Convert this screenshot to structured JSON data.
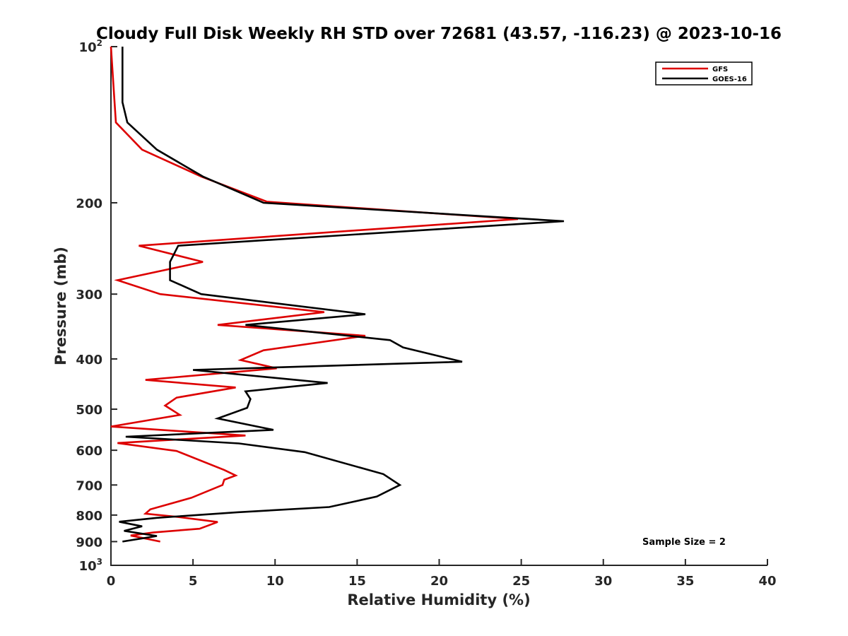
{
  "chart_data": {
    "type": "line",
    "title": "Cloudy Full Disk Weekly RH STD over 72681 (43.57, -116.23) @ 2023-10-16",
    "xlabel": "Relative Humidity (%)",
    "ylabel": "Pressure (mb)",
    "xlim": [
      0,
      40
    ],
    "ylim": [
      100,
      1000
    ],
    "y_scale": "log",
    "y_reversed": true,
    "x_ticks": [
      "0",
      "5",
      "10",
      "15",
      "20",
      "25",
      "30",
      "35",
      "40"
    ],
    "y_ticks": [
      {
        "value": 100,
        "base": "10",
        "exp": "2"
      },
      {
        "value": 200,
        "label": "200"
      },
      {
        "value": 300,
        "label": "300"
      },
      {
        "value": 400,
        "label": "400"
      },
      {
        "value": 500,
        "label": "500"
      },
      {
        "value": 600,
        "label": "600"
      },
      {
        "value": 700,
        "label": "700"
      },
      {
        "value": 800,
        "label": "800"
      },
      {
        "value": 900,
        "label": "900"
      },
      {
        "value": 1000,
        "base": "10",
        "exp": "3"
      }
    ],
    "grid": false,
    "legend_position": "top-right",
    "annotation": "Sample Size = 2",
    "series": [
      {
        "name": "GFS",
        "color": "#dd0000",
        "points": [
          [
            0.0,
            100
          ],
          [
            0.2,
            125
          ],
          [
            0.3,
            140
          ],
          [
            1.9,
            158
          ],
          [
            5.5,
            178
          ],
          [
            9.5,
            199
          ],
          [
            24.8,
            215
          ],
          [
            1.7,
            242
          ],
          [
            5.6,
            260
          ],
          [
            0.4,
            282
          ],
          [
            3.0,
            300
          ],
          [
            13.0,
            325
          ],
          [
            6.5,
            344
          ],
          [
            15.5,
            361
          ],
          [
            9.3,
            385
          ],
          [
            7.9,
            402
          ],
          [
            10.1,
            417
          ],
          [
            2.1,
            439
          ],
          [
            7.6,
            454
          ],
          [
            4.0,
            475
          ],
          [
            3.3,
            492
          ],
          [
            4.2,
            513
          ],
          [
            0.0,
            540
          ],
          [
            8.2,
            562
          ],
          [
            0.4,
            581
          ],
          [
            4.0,
            602
          ],
          [
            6.9,
            655
          ],
          [
            7.6,
            671
          ],
          [
            6.9,
            684
          ],
          [
            6.8,
            700
          ],
          [
            4.9,
            741
          ],
          [
            2.4,
            780
          ],
          [
            2.1,
            795
          ],
          [
            4.1,
            807
          ],
          [
            6.5,
            825
          ],
          [
            5.4,
            850
          ],
          [
            2.6,
            864
          ],
          [
            1.2,
            876
          ],
          [
            3.0,
            900
          ]
        ]
      },
      {
        "name": "GOES-16",
        "color": "#000000",
        "points": [
          [
            0.7,
            100
          ],
          [
            0.7,
            128
          ],
          [
            1.0,
            140
          ],
          [
            2.8,
            158
          ],
          [
            5.6,
            178
          ],
          [
            9.3,
            200
          ],
          [
            27.6,
            217
          ],
          [
            4.1,
            242
          ],
          [
            3.6,
            260
          ],
          [
            3.6,
            282
          ],
          [
            5.5,
            300
          ],
          [
            15.5,
            328
          ],
          [
            8.2,
            344
          ],
          [
            17.0,
            368
          ],
          [
            17.8,
            380
          ],
          [
            21.4,
            405
          ],
          [
            5.0,
            420
          ],
          [
            13.2,
            445
          ],
          [
            8.2,
            462
          ],
          [
            8.5,
            478
          ],
          [
            8.3,
            497
          ],
          [
            6.5,
            521
          ],
          [
            9.9,
            548
          ],
          [
            0.9,
            565
          ],
          [
            7.8,
            582
          ],
          [
            11.8,
            605
          ],
          [
            16.6,
            667
          ],
          [
            17.6,
            700
          ],
          [
            16.2,
            737
          ],
          [
            13.3,
            772
          ],
          [
            7.7,
            790
          ],
          [
            2.8,
            810
          ],
          [
            0.5,
            824
          ],
          [
            1.9,
            841
          ],
          [
            0.8,
            858
          ],
          [
            2.8,
            878
          ],
          [
            0.7,
            900
          ]
        ]
      }
    ]
  }
}
